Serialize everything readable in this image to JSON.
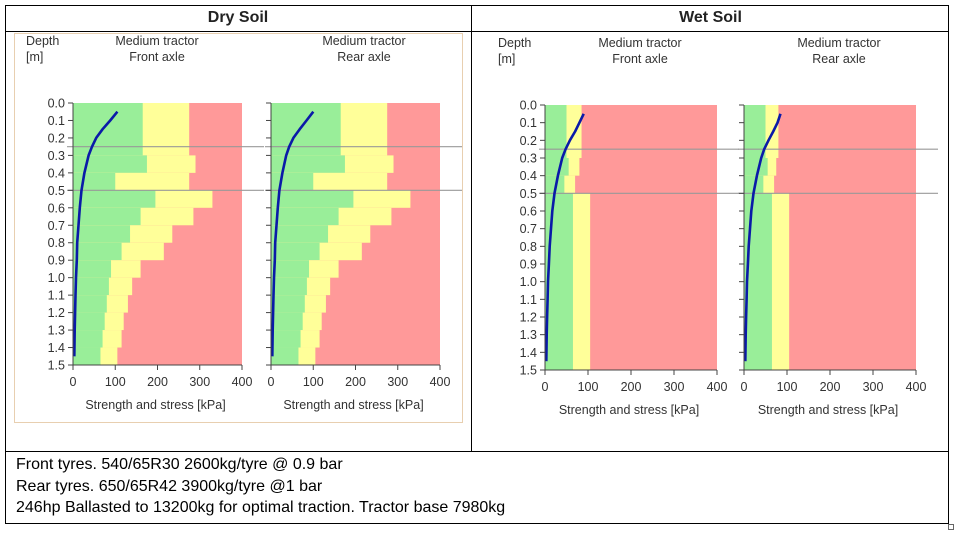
{
  "panels": {
    "dry_title": "Dry Soil",
    "wet_title": "Wet Soil"
  },
  "notes": {
    "line1": "Front tyres. 540/65R30 2600kg/tyre @ 0.9 bar",
    "line2": "Rear tyres. 650/65R42 3900kg/tyre @1 bar",
    "line3": "246hp Ballasted to 13200kg for optimal traction. Tractor base 7980kg"
  },
  "colors": {
    "green": "#99ee99",
    "yellow": "#ffff99",
    "red": "#ff9999",
    "stress_line": "#0a1aa8",
    "ref_line": "#999999"
  },
  "chart_data": [
    {
      "type": "area",
      "panel": "Dry Soil",
      "title": "Medium tractor\nFront axle",
      "ylabel": "Depth\n[m]",
      "xlabel": "Strength and stress [kPa]",
      "xlim": [
        0,
        400
      ],
      "ylim": [
        0,
        1.5
      ],
      "xticks": [
        0,
        100,
        200,
        300,
        400
      ],
      "yticks": [
        "0.0",
        "0.1",
        "0.2",
        "0.3",
        "0.4",
        "0.5",
        "0.6",
        "0.7",
        "0.8",
        "0.9",
        "1.0",
        "1.1",
        "1.2",
        "1.3",
        "1.4",
        "1.5"
      ],
      "reference_depths": [
        0.25,
        0.5
      ],
      "layers": [
        {
          "top": 0.0,
          "bottom": 0.3,
          "green_to": 165,
          "yellow_to": 275
        },
        {
          "top": 0.3,
          "bottom": 0.4,
          "green_to": 175,
          "yellow_to": 290
        },
        {
          "top": 0.4,
          "bottom": 0.5,
          "green_to": 100,
          "yellow_to": 275
        },
        {
          "top": 0.5,
          "bottom": 0.6,
          "green_to": 195,
          "yellow_to": 330
        },
        {
          "top": 0.6,
          "bottom": 0.7,
          "green_to": 160,
          "yellow_to": 285
        },
        {
          "top": 0.7,
          "bottom": 0.8,
          "green_to": 135,
          "yellow_to": 235
        },
        {
          "top": 0.8,
          "bottom": 0.9,
          "green_to": 115,
          "yellow_to": 215
        },
        {
          "top": 0.9,
          "bottom": 1.0,
          "green_to": 90,
          "yellow_to": 160
        },
        {
          "top": 1.0,
          "bottom": 1.1,
          "green_to": 85,
          "yellow_to": 140
        },
        {
          "top": 1.1,
          "bottom": 1.2,
          "green_to": 80,
          "yellow_to": 130
        },
        {
          "top": 1.2,
          "bottom": 1.3,
          "green_to": 75,
          "yellow_to": 120
        },
        {
          "top": 1.3,
          "bottom": 1.4,
          "green_to": 70,
          "yellow_to": 115
        },
        {
          "top": 1.4,
          "bottom": 1.5,
          "green_to": 65,
          "yellow_to": 105
        }
      ],
      "stress": {
        "depth": [
          0.05,
          0.1,
          0.15,
          0.2,
          0.25,
          0.3,
          0.4,
          0.5,
          0.6,
          0.7,
          0.8,
          0.9,
          1.0,
          1.1,
          1.2,
          1.3,
          1.45
        ],
        "value": [
          105,
          88,
          70,
          55,
          45,
          37,
          27,
          20,
          16,
          13,
          10,
          9,
          7,
          6,
          5,
          4,
          3
        ]
      }
    },
    {
      "type": "area",
      "panel": "Dry Soil",
      "title": "Medium tractor\nRear axle",
      "ylabel": "",
      "xlabel": "Strength and stress [kPa]",
      "xlim": [
        0,
        400
      ],
      "ylim": [
        0,
        1.5
      ],
      "xticks": [
        0,
        100,
        200,
        300,
        400
      ],
      "yticks": [],
      "reference_depths": [
        0.25,
        0.5
      ],
      "layers": [
        {
          "top": 0.0,
          "bottom": 0.3,
          "green_to": 165,
          "yellow_to": 275
        },
        {
          "top": 0.3,
          "bottom": 0.4,
          "green_to": 175,
          "yellow_to": 290
        },
        {
          "top": 0.4,
          "bottom": 0.5,
          "green_to": 100,
          "yellow_to": 275
        },
        {
          "top": 0.5,
          "bottom": 0.6,
          "green_to": 195,
          "yellow_to": 330
        },
        {
          "top": 0.6,
          "bottom": 0.7,
          "green_to": 160,
          "yellow_to": 285
        },
        {
          "top": 0.7,
          "bottom": 0.8,
          "green_to": 135,
          "yellow_to": 235
        },
        {
          "top": 0.8,
          "bottom": 0.9,
          "green_to": 115,
          "yellow_to": 215
        },
        {
          "top": 0.9,
          "bottom": 1.0,
          "green_to": 90,
          "yellow_to": 160
        },
        {
          "top": 1.0,
          "bottom": 1.1,
          "green_to": 85,
          "yellow_to": 140
        },
        {
          "top": 1.1,
          "bottom": 1.2,
          "green_to": 80,
          "yellow_to": 130
        },
        {
          "top": 1.2,
          "bottom": 1.3,
          "green_to": 75,
          "yellow_to": 120
        },
        {
          "top": 1.3,
          "bottom": 1.4,
          "green_to": 70,
          "yellow_to": 115
        },
        {
          "top": 1.4,
          "bottom": 1.5,
          "green_to": 65,
          "yellow_to": 105
        }
      ],
      "stress": {
        "depth": [
          0.05,
          0.1,
          0.15,
          0.2,
          0.25,
          0.3,
          0.4,
          0.5,
          0.6,
          0.7,
          0.8,
          0.9,
          1.0,
          1.1,
          1.2,
          1.3,
          1.45
        ],
        "value": [
          100,
          84,
          68,
          53,
          43,
          36,
          27,
          20,
          16,
          13,
          10,
          9,
          7,
          6,
          5,
          4,
          3
        ]
      }
    },
    {
      "type": "area",
      "panel": "Wet Soil",
      "title": "Medium tractor\nFront axle",
      "ylabel": "Depth\n[m]",
      "xlabel": "Strength and stress [kPa]",
      "xlim": [
        0,
        400
      ],
      "ylim": [
        0,
        1.5
      ],
      "xticks": [
        0,
        100,
        200,
        300,
        400
      ],
      "yticks": [
        "0.0",
        "0.1",
        "0.2",
        "0.3",
        "0.4",
        "0.5",
        "0.6",
        "0.7",
        "0.8",
        "0.9",
        "1.0",
        "1.1",
        "1.2",
        "1.3",
        "1.4",
        "1.5"
      ],
      "reference_depths": [
        0.25,
        0.5
      ],
      "layers": [
        {
          "top": 0.0,
          "bottom": 0.3,
          "green_to": 50,
          "yellow_to": 85
        },
        {
          "top": 0.3,
          "bottom": 0.4,
          "green_to": 55,
          "yellow_to": 80
        },
        {
          "top": 0.4,
          "bottom": 0.5,
          "green_to": 45,
          "yellow_to": 70
        },
        {
          "top": 0.5,
          "bottom": 1.5,
          "green_to": 65,
          "yellow_to": 105
        }
      ],
      "stress": {
        "depth": [
          0.05,
          0.1,
          0.15,
          0.2,
          0.25,
          0.3,
          0.4,
          0.5,
          0.6,
          0.7,
          0.8,
          0.9,
          1.0,
          1.1,
          1.2,
          1.3,
          1.45
        ],
        "value": [
          90,
          80,
          70,
          58,
          48,
          40,
          30,
          22,
          17,
          14,
          11,
          9,
          7,
          6,
          5,
          4,
          3
        ]
      }
    },
    {
      "type": "area",
      "panel": "Wet Soil",
      "title": "Medium tractor\nRear axle",
      "ylabel": "",
      "xlabel": "Strength and stress [kPa]",
      "xlim": [
        0,
        400
      ],
      "ylim": [
        0,
        1.5
      ],
      "xticks": [
        0,
        100,
        200,
        300,
        400
      ],
      "yticks": [],
      "reference_depths": [
        0.25,
        0.5
      ],
      "layers": [
        {
          "top": 0.0,
          "bottom": 0.3,
          "green_to": 50,
          "yellow_to": 80
        },
        {
          "top": 0.3,
          "bottom": 0.4,
          "green_to": 55,
          "yellow_to": 75
        },
        {
          "top": 0.4,
          "bottom": 0.5,
          "green_to": 45,
          "yellow_to": 70
        },
        {
          "top": 0.5,
          "bottom": 1.5,
          "green_to": 65,
          "yellow_to": 105
        }
      ],
      "stress": {
        "depth": [
          0.05,
          0.1,
          0.15,
          0.2,
          0.25,
          0.3,
          0.4,
          0.5,
          0.6,
          0.7,
          0.8,
          0.9,
          1.0,
          1.1,
          1.2,
          1.3,
          1.45
        ],
        "value": [
          85,
          78,
          68,
          57,
          47,
          40,
          30,
          22,
          17,
          14,
          11,
          9,
          7,
          6,
          5,
          4,
          3
        ]
      }
    }
  ]
}
